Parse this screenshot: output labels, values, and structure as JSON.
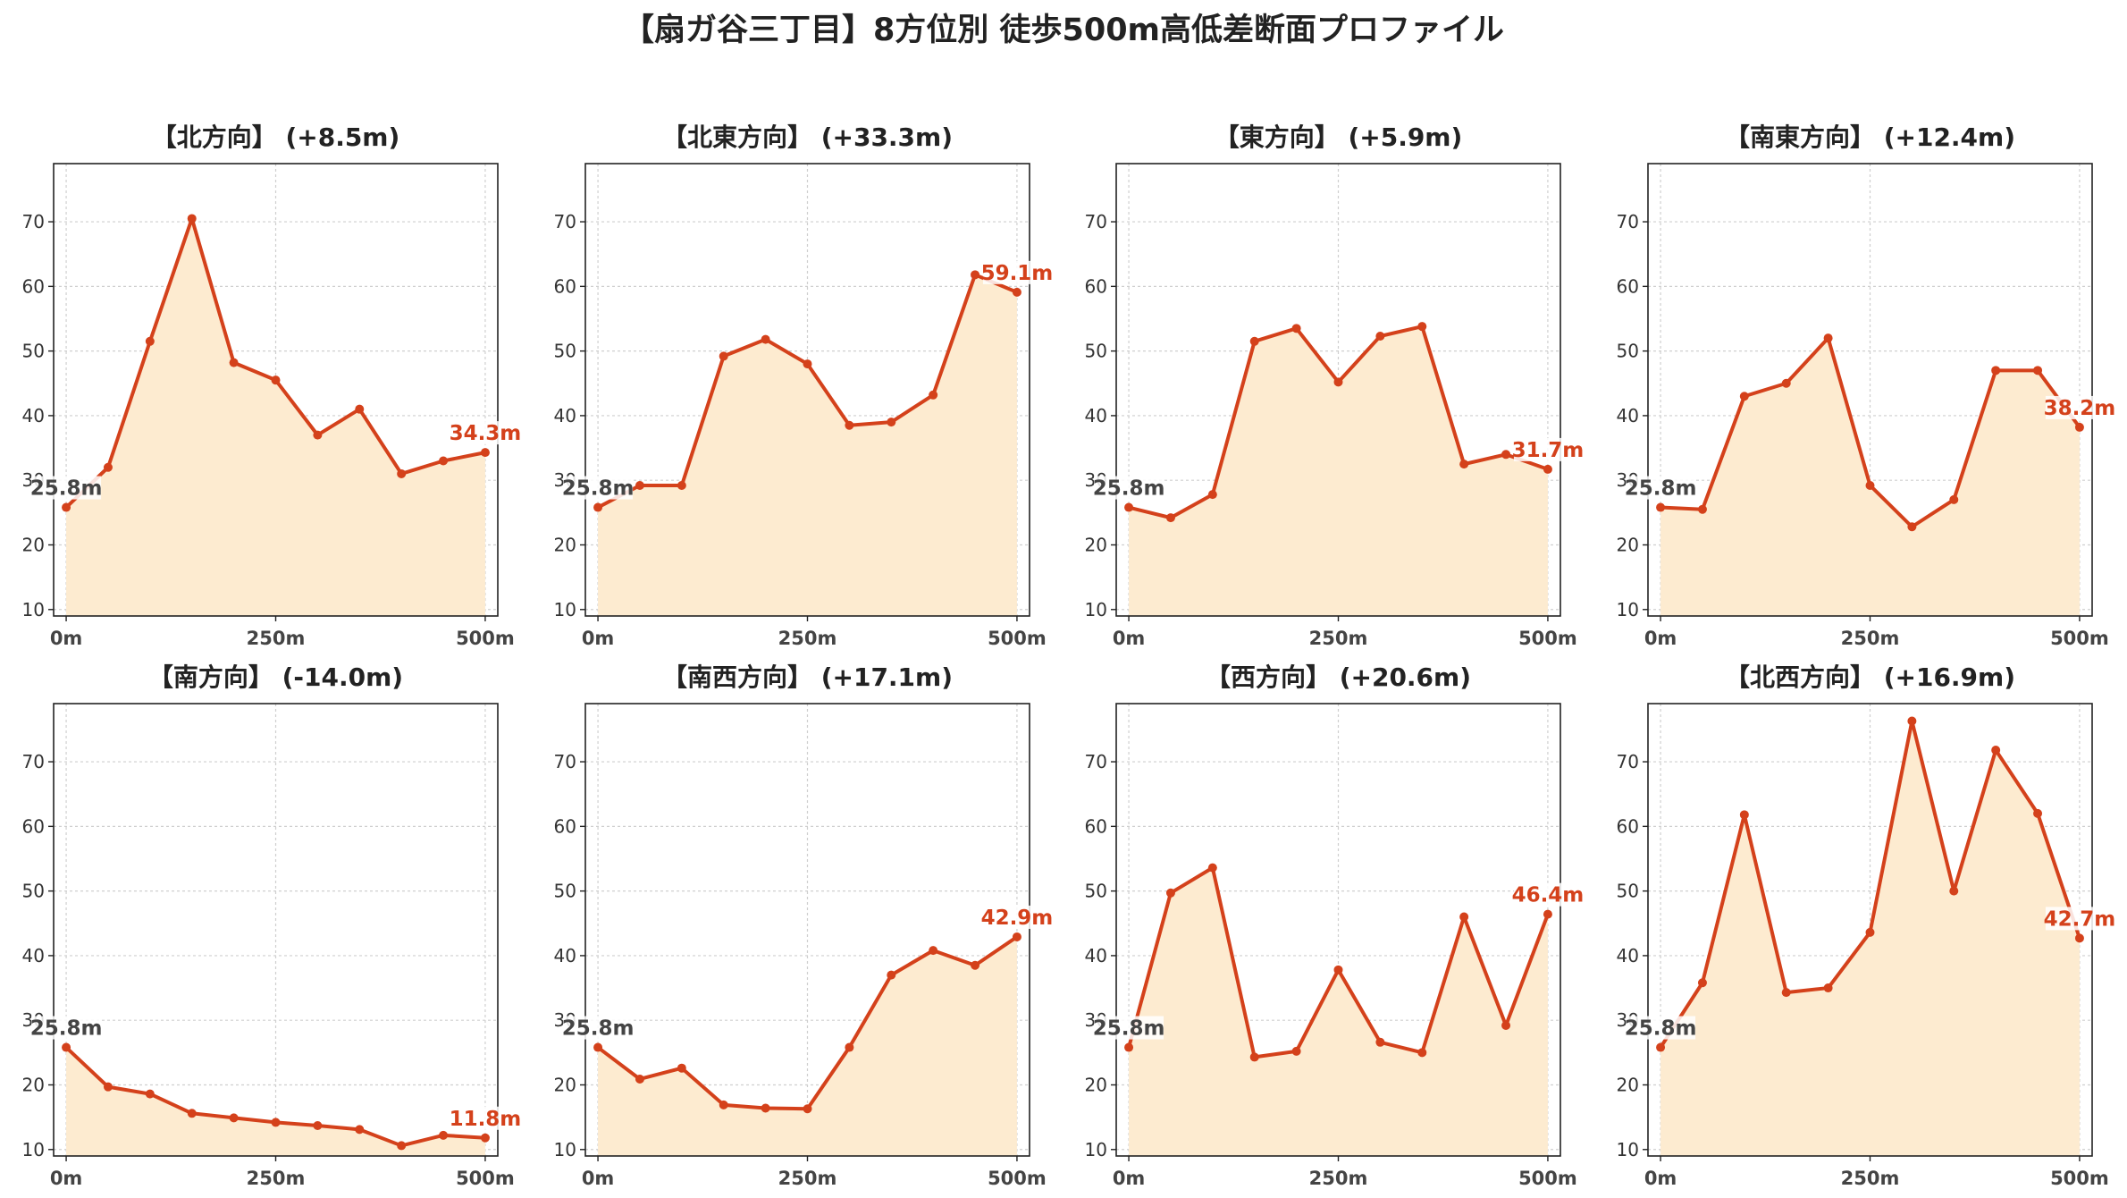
{
  "title": "【扇ガ谷三丁目】8方位別 徒歩500m高低差断面プロファイル",
  "colors": {
    "line": "#d4411b",
    "fill": "#fdebd0",
    "grid": "#cfcfcf",
    "start_label": "#444444",
    "end_label": "#d4411b"
  },
  "chart_data": [
    {
      "type": "area",
      "title": "【北方向】 (+8.5m)",
      "x": [
        0,
        50,
        100,
        150,
        200,
        250,
        300,
        350,
        400,
        450,
        500
      ],
      "values": [
        25.8,
        32.0,
        51.5,
        70.5,
        48.2,
        45.5,
        37.0,
        41.0,
        31.0,
        33.0,
        34.3
      ],
      "start_label": "25.8m",
      "end_label": "34.3m",
      "xticks": [
        "0m",
        "250m",
        "500m"
      ],
      "yticks": [
        10,
        20,
        30,
        40,
        50,
        60,
        70
      ],
      "ylim": [
        9,
        79
      ],
      "xlim": [
        -15,
        515
      ],
      "grid": true
    },
    {
      "type": "area",
      "title": "【北東方向】 (+33.3m)",
      "x": [
        0,
        50,
        100,
        150,
        200,
        250,
        300,
        350,
        400,
        450,
        500
      ],
      "values": [
        25.8,
        29.2,
        29.2,
        49.2,
        51.8,
        48.0,
        38.5,
        39.0,
        43.2,
        61.8,
        59.1
      ],
      "start_label": "25.8m",
      "end_label": "59.1m",
      "xticks": [
        "0m",
        "250m",
        "500m"
      ],
      "yticks": [
        10,
        20,
        30,
        40,
        50,
        60,
        70
      ],
      "ylim": [
        9,
        79
      ],
      "xlim": [
        -15,
        515
      ],
      "grid": true
    },
    {
      "type": "area",
      "title": "【東方向】 (+5.9m)",
      "x": [
        0,
        50,
        100,
        150,
        200,
        250,
        300,
        350,
        400,
        450,
        500
      ],
      "values": [
        25.8,
        24.2,
        27.8,
        51.5,
        53.5,
        45.2,
        52.3,
        53.8,
        32.5,
        34.0,
        31.7
      ],
      "start_label": "25.8m",
      "end_label": "31.7m",
      "xticks": [
        "0m",
        "250m",
        "500m"
      ],
      "yticks": [
        10,
        20,
        30,
        40,
        50,
        60,
        70
      ],
      "ylim": [
        9,
        79
      ],
      "xlim": [
        -15,
        515
      ],
      "grid": true
    },
    {
      "type": "area",
      "title": "【南東方向】 (+12.4m)",
      "x": [
        0,
        50,
        100,
        150,
        200,
        250,
        300,
        350,
        400,
        450,
        500
      ],
      "values": [
        25.8,
        25.5,
        43.0,
        45.0,
        52.0,
        29.2,
        22.8,
        27.0,
        47.0,
        47.0,
        38.2
      ],
      "start_label": "25.8m",
      "end_label": "38.2m",
      "xticks": [
        "0m",
        "250m",
        "500m"
      ],
      "yticks": [
        10,
        20,
        30,
        40,
        50,
        60,
        70
      ],
      "ylim": [
        9,
        79
      ],
      "xlim": [
        -15,
        515
      ],
      "grid": true
    },
    {
      "type": "area",
      "title": "【南方向】 (-14.0m)",
      "x": [
        0,
        50,
        100,
        150,
        200,
        250,
        300,
        350,
        400,
        450,
        500
      ],
      "values": [
        25.8,
        19.7,
        18.6,
        15.6,
        14.9,
        14.2,
        13.7,
        13.1,
        10.6,
        12.2,
        11.8
      ],
      "start_label": "25.8m",
      "end_label": "11.8m",
      "xticks": [
        "0m",
        "250m",
        "500m"
      ],
      "yticks": [
        10,
        20,
        30,
        40,
        50,
        60,
        70
      ],
      "ylim": [
        9,
        79
      ],
      "xlim": [
        -15,
        515
      ],
      "grid": true
    },
    {
      "type": "area",
      "title": "【南西方向】 (+17.1m)",
      "x": [
        0,
        50,
        100,
        150,
        200,
        250,
        300,
        350,
        400,
        450,
        500
      ],
      "values": [
        25.8,
        20.9,
        22.6,
        16.9,
        16.4,
        16.3,
        25.8,
        37.0,
        40.8,
        38.5,
        42.9
      ],
      "start_label": "25.8m",
      "end_label": "42.9m",
      "xticks": [
        "0m",
        "250m",
        "500m"
      ],
      "yticks": [
        10,
        20,
        30,
        40,
        50,
        60,
        70
      ],
      "ylim": [
        9,
        79
      ],
      "xlim": [
        -15,
        515
      ],
      "grid": true
    },
    {
      "type": "area",
      "title": "【西方向】 (+20.6m)",
      "x": [
        0,
        50,
        100,
        150,
        200,
        250,
        300,
        350,
        400,
        450,
        500
      ],
      "values": [
        25.8,
        49.7,
        53.6,
        24.3,
        25.2,
        37.8,
        26.6,
        25.0,
        46.0,
        29.2,
        46.4
      ],
      "start_label": "25.8m",
      "end_label": "46.4m",
      "xticks": [
        "0m",
        "250m",
        "500m"
      ],
      "yticks": [
        10,
        20,
        30,
        40,
        50,
        60,
        70
      ],
      "ylim": [
        9,
        79
      ],
      "xlim": [
        -15,
        515
      ],
      "grid": true
    },
    {
      "type": "area",
      "title": "【北西方向】 (+16.9m)",
      "x": [
        0,
        50,
        100,
        150,
        200,
        250,
        300,
        350,
        400,
        450,
        500
      ],
      "values": [
        25.8,
        35.8,
        61.8,
        34.3,
        35.0,
        43.6,
        76.3,
        50.0,
        71.8,
        62.0,
        42.7
      ],
      "start_label": "25.8m",
      "end_label": "42.7m",
      "xticks": [
        "0m",
        "250m",
        "500m"
      ],
      "yticks": [
        10,
        20,
        30,
        40,
        50,
        60,
        70
      ],
      "ylim": [
        9,
        79
      ],
      "xlim": [
        -15,
        515
      ],
      "grid": true
    }
  ]
}
